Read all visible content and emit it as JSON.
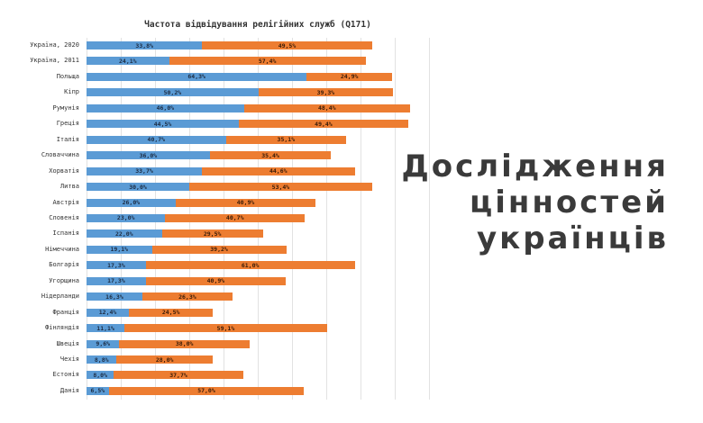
{
  "headline": {
    "line1": "Дослідження",
    "line2": "цінностей",
    "line3": "українців"
  },
  "colors": {
    "series1": "#5b9bd5",
    "series2": "#ed7d31",
    "text": "#3a3a3a",
    "grid": "#e2e2e2"
  },
  "chart_data": {
    "type": "bar",
    "orientation": "horizontal",
    "stacked": true,
    "title": "Частота відвідування релігійних служб (Q171)",
    "xlabel": "",
    "ylabel": "",
    "xlim": [
      0,
      100
    ],
    "grid": true,
    "gridline_step": 10,
    "legend": null,
    "categories": [
      "Україна, 2020",
      "Україна, 2011",
      "Польща",
      "Кіпр",
      "Румунія",
      "Греція",
      "Італія",
      "Словаччина",
      "Хорватія",
      "Литва",
      "Австрія",
      "Словенія",
      "Іспанія",
      "Німеччина",
      "Болгарія",
      "Угорщина",
      "Нідерланди",
      "Франція",
      "Фінляндія",
      "Швеція",
      "Чехія",
      "Естонія",
      "Данія"
    ],
    "series": [
      {
        "name": "series_blue",
        "color": "#5b9bd5",
        "values": [
          33.8,
          24.1,
          64.3,
          50.2,
          46.0,
          44.5,
          40.7,
          36.0,
          33.7,
          30.0,
          26.0,
          23.0,
          22.0,
          19.1,
          17.3,
          17.3,
          16.3,
          12.4,
          11.1,
          9.6,
          8.8,
          8.0,
          6.5
        ],
        "labels": [
          "33,8%",
          "24,1%",
          "64,3%",
          "50,2%",
          "46,0%",
          "44,5%",
          "40,7%",
          "36,0%",
          "33,7%",
          "30,0%",
          "26,0%",
          "23,0%",
          "22,0%",
          "19,1%",
          "17,3%",
          "17,3%",
          "16,3%",
          "12,4%",
          "11,1%",
          "9,6%",
          "8,8%",
          "8,0%",
          "6,5%"
        ]
      },
      {
        "name": "series_orange",
        "color": "#ed7d31",
        "values": [
          49.5,
          57.4,
          24.9,
          39.3,
          48.4,
          49.4,
          35.1,
          35.4,
          44.6,
          53.4,
          40.9,
          40.7,
          29.5,
          39.2,
          61.0,
          40.9,
          26.3,
          24.5,
          59.1,
          38.0,
          28.0,
          37.7,
          57.0
        ],
        "labels": [
          "49,5%",
          "57,4%",
          "24,9%",
          "39,3%",
          "48,4%",
          "49,4%",
          "35,1%",
          "35,4%",
          "44,6%",
          "53,4%",
          "40,9%",
          "40,7%",
          "29,5%",
          "39,2%",
          "61,0%",
          "40,9%",
          "26,3%",
          "24,5%",
          "59,1%",
          "38,0%",
          "28,0%",
          "37,7%",
          "57,0%"
        ]
      }
    ]
  }
}
